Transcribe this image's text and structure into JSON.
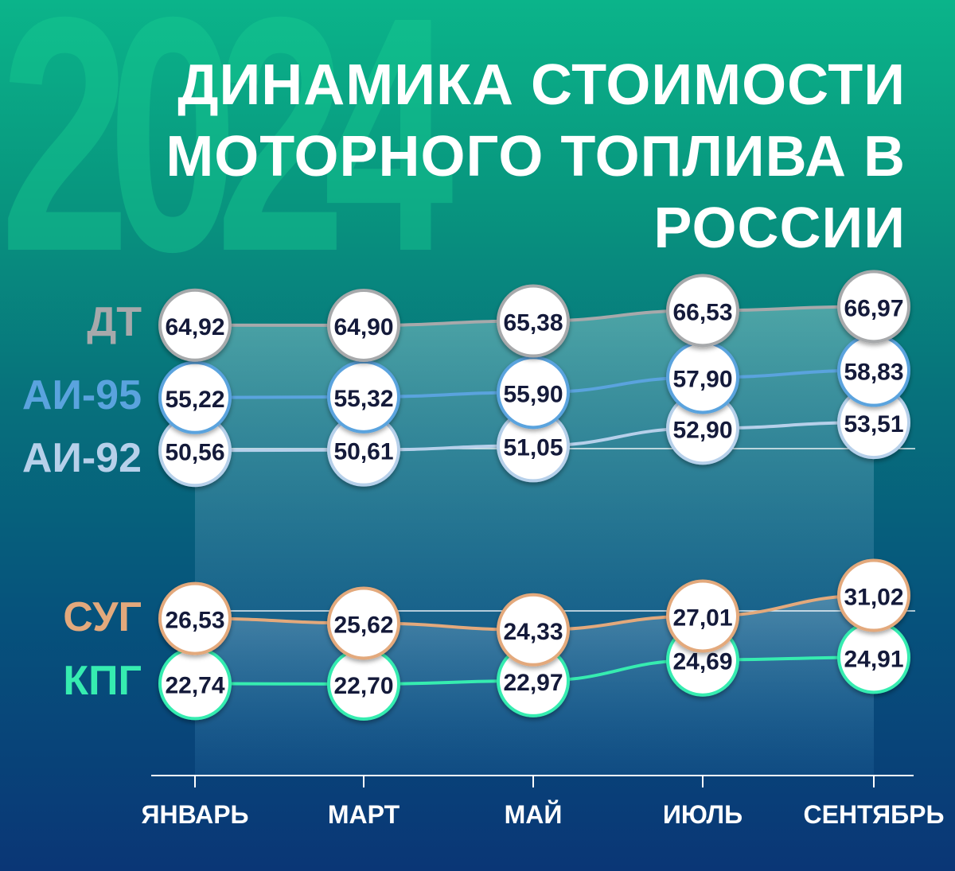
{
  "header": {
    "year": "2024",
    "title_line1": "ДИНАМИКА СТОИМОСТИ",
    "title_line2": "МОТОРНОГО ТОПЛИВА В РОССИИ"
  },
  "chart_data": {
    "type": "line",
    "title": "ДИНАМИКА СТОИМОСТИ МОТОРНОГО ТОПЛИВА В РОССИИ",
    "categories": [
      "ЯНВАРЬ",
      "МАРТ",
      "МАЙ",
      "ИЮЛЬ",
      "СЕНТЯБРЬ"
    ],
    "legend_position": "left",
    "series": [
      {
        "name": "ДТ",
        "color": "#a7a9ab",
        "labels": [
          "64,92",
          "64,90",
          "65,38",
          "66,53",
          "66,97"
        ],
        "values": [
          64.92,
          64.9,
          65.38,
          66.53,
          66.97
        ]
      },
      {
        "name": "АИ-95",
        "color": "#5aa3de",
        "labels": [
          "55,22",
          "55,32",
          "55,90",
          "57,90",
          "58,83"
        ],
        "values": [
          55.22,
          55.32,
          55.9,
          57.9,
          58.83
        ]
      },
      {
        "name": "АИ-92",
        "color": "#b6d0ea",
        "labels": [
          "50,56",
          "50,61",
          "51,05",
          "52,90",
          "53,51"
        ],
        "values": [
          50.56,
          50.61,
          51.05,
          52.9,
          53.51
        ]
      },
      {
        "name": "СУГ",
        "color": "#e3a97c",
        "labels": [
          "26,53",
          "25,62",
          "24,33",
          "27,01",
          "31,02"
        ],
        "values": [
          26.53,
          25.62,
          24.33,
          27.01,
          31.02
        ]
      },
      {
        "name": "КПГ",
        "color": "#36ecb0",
        "labels": [
          "22,74",
          "22,70",
          "22,97",
          "24,69",
          "24,91"
        ],
        "values": [
          22.74,
          22.7,
          22.97,
          24.69,
          24.91
        ]
      }
    ],
    "grid": false
  }
}
